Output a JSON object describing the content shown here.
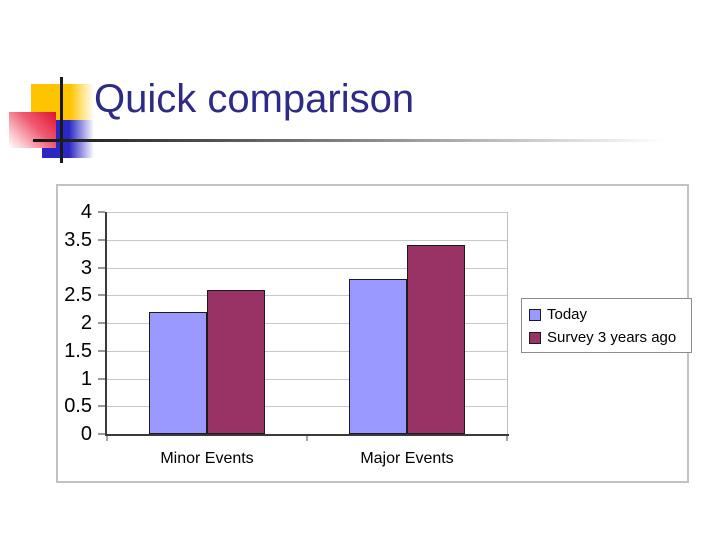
{
  "slide": {
    "title": "Quick comparison"
  },
  "decor": {
    "yellow_square_color": "#FFC400",
    "red_square_color": "#E31937",
    "blue_square_color": "#2B27C4",
    "cross_line_color": "#1A1A1A",
    "title_color": "#2D2B85"
  },
  "chart_data": {
    "type": "bar",
    "title": "",
    "xlabel": "",
    "ylabel": "",
    "categories": [
      "Minor Events",
      "Major Events"
    ],
    "series": [
      {
        "name": "Today",
        "color": "#9999FF",
        "values": [
          2.2,
          2.8
        ]
      },
      {
        "name": "Survey 3 years ago",
        "color": "#993366",
        "values": [
          2.6,
          3.4
        ]
      }
    ],
    "ylim": [
      0,
      4
    ],
    "ytick_step": 0.5,
    "ytick_labels": [
      "4",
      "3.5",
      "3",
      "2.5",
      "2",
      "1.5",
      "1",
      "0.5",
      "0"
    ],
    "grid": true,
    "gridline_color": "#C9C9C9",
    "axis_color": "#3A3A3A",
    "legend_position": "right"
  }
}
